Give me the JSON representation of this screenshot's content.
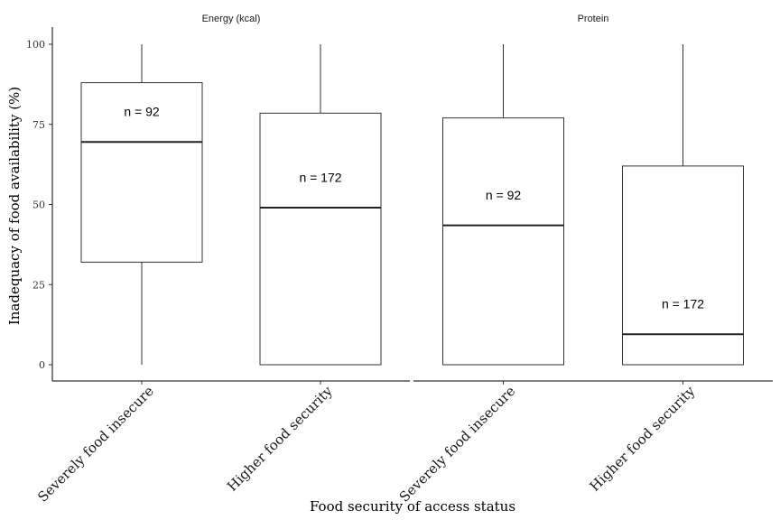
{
  "chart_data": {
    "type": "box",
    "xlabel": "Food security of access status",
    "ylabel": "Inadequacy of food availability (%)",
    "ylim": [
      0,
      100
    ],
    "yticks": [
      0,
      25,
      50,
      75,
      100
    ],
    "grid": false,
    "categories": [
      "Severely food insecure",
      "Higher food security"
    ],
    "panels": [
      {
        "title": "Energy (kcal)",
        "boxes": [
          {
            "category": "Severely food insecure",
            "min": 0,
            "q1": 32,
            "median": 69.5,
            "q3": 88,
            "max": 100,
            "label": "n = 92",
            "label_y": 79
          },
          {
            "category": "Higher food security",
            "min": 0,
            "q1": 0,
            "median": 49,
            "q3": 78.5,
            "max": 100,
            "label": "n = 172",
            "label_y": 58.5
          }
        ]
      },
      {
        "title": "Protein",
        "boxes": [
          {
            "category": "Severely food insecure",
            "min": 0,
            "q1": 0,
            "median": 43.5,
            "q3": 77,
            "max": 100,
            "label": "n = 92",
            "label_y": 53
          }
        ]
      }
    ],
    "protein_higher": {
      "category": "Higher food security",
      "min": 0,
      "q1": 0,
      "median": 9.5,
      "q3": 62,
      "max": 100,
      "label": "n = 172",
      "label_y": 19
    }
  }
}
